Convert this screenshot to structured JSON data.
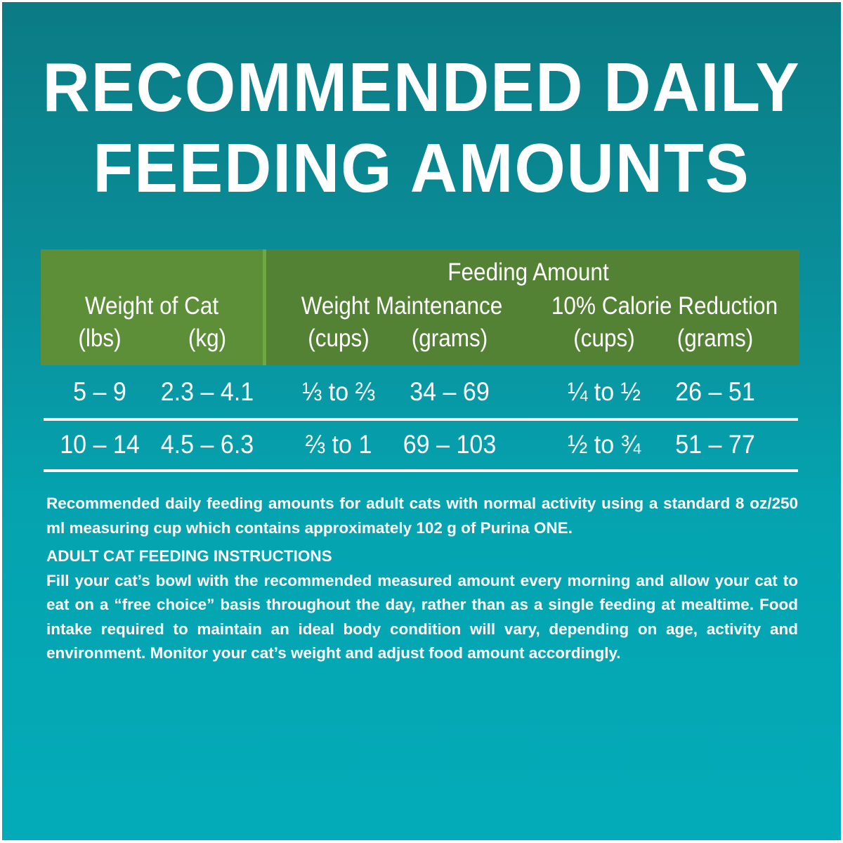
{
  "title": {
    "line1": "RECOMMENDED DAILY",
    "line2": "FEEDING AMOUNTS"
  },
  "colors": {
    "background_top": "#0b7b84",
    "background_bottom": "#03abb8",
    "header_left": "#5d8f38",
    "header_right": "#548234",
    "text": "#ffffff"
  },
  "table": {
    "group_header": "Feeding Amount",
    "weight_header": "Weight of Cat",
    "maintenance_header": "Weight Maintenance",
    "reduction_header": "10% Calorie Reduction",
    "units": [
      "(lbs)",
      "(kg)",
      "(cups)",
      "(grams)",
      "(cups)",
      "(grams)"
    ],
    "rows": [
      [
        "5 – 9",
        "2.3 – 4.1",
        "⅓ to ⅔",
        "34 – 69",
        "¼ to ½",
        "26 – 51"
      ],
      [
        "10 – 14",
        "4.5 – 6.3",
        "⅔ to 1",
        "69 – 103",
        "½ to ¾",
        "51 – 77"
      ]
    ]
  },
  "notes": {
    "intro": "Recommended daily feeding amounts for adult cats with normal activity using a standard 8 oz/250 ml measuring cup which contains approximately 102 g of ",
    "brand": "Purina ONE",
    "intro_end": ".",
    "heading": "ADULT CAT FEEDING INSTRUCTIONS",
    "body": "Fill your cat’s bowl with the recommended measured amount every morning and allow your cat to eat on a “free choice” basis throughout the day, rather than as a single feeding at mealtime. Food intake required to maintain an ideal body condition will vary, depending on age, activity and environment. Monitor your cat’s weight and adjust food amount accordingly."
  }
}
